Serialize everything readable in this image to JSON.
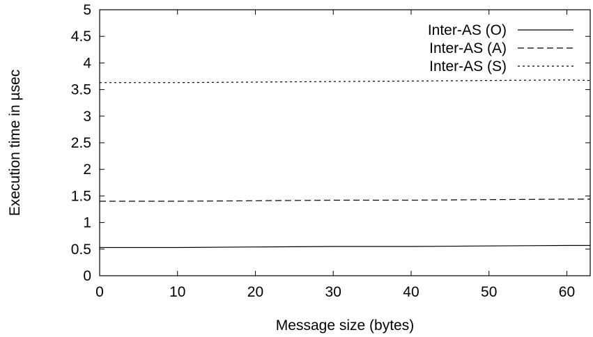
{
  "chart_data": {
    "type": "line",
    "title": "",
    "xlabel": "Message size (bytes)",
    "ylabel": "Execution time in µsec",
    "xlim": [
      0,
      63
    ],
    "ylim": [
      0,
      5
    ],
    "xticks": [
      "0",
      "10",
      "20",
      "30",
      "40",
      "50",
      "60"
    ],
    "yticks": [
      "0",
      "0.5",
      "1",
      "1.5",
      "2",
      "2.5",
      "3",
      "3.5",
      "4",
      "4.5",
      "5"
    ],
    "grid": false,
    "legend_position": "top-right",
    "series": [
      {
        "name": "Inter-AS (O)",
        "line_style": "solid",
        "x": [
          0,
          10,
          20,
          30,
          40,
          50,
          60,
          63
        ],
        "values": [
          0.53,
          0.53,
          0.54,
          0.55,
          0.55,
          0.56,
          0.57,
          0.57
        ]
      },
      {
        "name": "Inter-AS (A)",
        "line_style": "dashed",
        "x": [
          0,
          10,
          20,
          30,
          40,
          50,
          60,
          63
        ],
        "values": [
          1.4,
          1.4,
          1.41,
          1.42,
          1.42,
          1.43,
          1.44,
          1.44
        ]
      },
      {
        "name": "Inter-AS (S)",
        "line_style": "dotted",
        "x": [
          0,
          10,
          20,
          30,
          40,
          50,
          60,
          63
        ],
        "values": [
          3.63,
          3.63,
          3.64,
          3.65,
          3.66,
          3.67,
          3.68,
          3.67
        ]
      }
    ]
  }
}
